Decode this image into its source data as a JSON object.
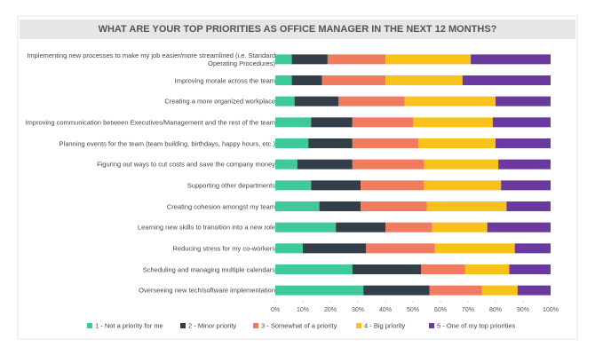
{
  "chart_data": {
    "type": "stacked-bar-horizontal",
    "title": "WHAT ARE YOUR TOP PRIORITIES AS OFFICE MANAGER IN THE NEXT 12 MONTHS?",
    "categories": [
      "Implementing new processes to make my job easier/more streamlined (i.e. Standard Operating Procedures)",
      "Improving morale across the team",
      "Creating a more organized workplace",
      "Improving communication between Executives/Management and the rest of the team",
      "Planning events for the team (team building, birthdays, happy hours, etc.)",
      "Figuring out ways to cut costs and save the company money",
      "Supporting other departments",
      "Creating cohesion amongst my team",
      "Learning new skills to transition into a new role",
      "Reducing stress for my co-workers",
      "Scheduling and managing multiple calendars",
      "Overseeing new tech/software implementation"
    ],
    "series": [
      {
        "name": "1 - Not a priority for me",
        "color": "#3ec99a",
        "values": [
          6,
          6,
          7,
          13,
          12,
          8,
          13,
          16,
          22,
          10,
          28,
          32
        ]
      },
      {
        "name": "2 - Minor priority",
        "color": "#333e48",
        "values": [
          13,
          11,
          16,
          15,
          16,
          20,
          18,
          15,
          18,
          23,
          25,
          24
        ]
      },
      {
        "name": "3 - Somewhat of a priority",
        "color": "#f07b5e",
        "values": [
          21,
          23,
          24,
          22,
          24,
          26,
          23,
          24,
          17,
          25,
          16,
          19
        ]
      },
      {
        "name": "4 - Big priority",
        "color": "#f8c21a",
        "values": [
          31,
          28,
          33,
          29,
          28,
          27,
          28,
          29,
          20,
          29,
          16,
          13
        ]
      },
      {
        "name": "5 - One of my top priorities",
        "color": "#6a3a9e",
        "values": [
          29,
          32,
          20,
          21,
          20,
          19,
          18,
          16,
          23,
          13,
          15,
          12
        ]
      }
    ],
    "xlim": [
      0,
      100
    ],
    "xticks": [
      {
        "value": 0,
        "label": "0%"
      },
      {
        "value": 10,
        "label": "10%"
      },
      {
        "value": 20,
        "label": "20%"
      },
      {
        "value": 30,
        "label": "30%"
      },
      {
        "value": 40,
        "label": "40%"
      },
      {
        "value": 50,
        "label": "50%"
      },
      {
        "value": 60,
        "label": "60%"
      },
      {
        "value": 70,
        "label": "70%"
      },
      {
        "value": 80,
        "label": "80%"
      },
      {
        "value": 90,
        "label": "90%"
      },
      {
        "value": 100,
        "label": "100%"
      }
    ]
  }
}
